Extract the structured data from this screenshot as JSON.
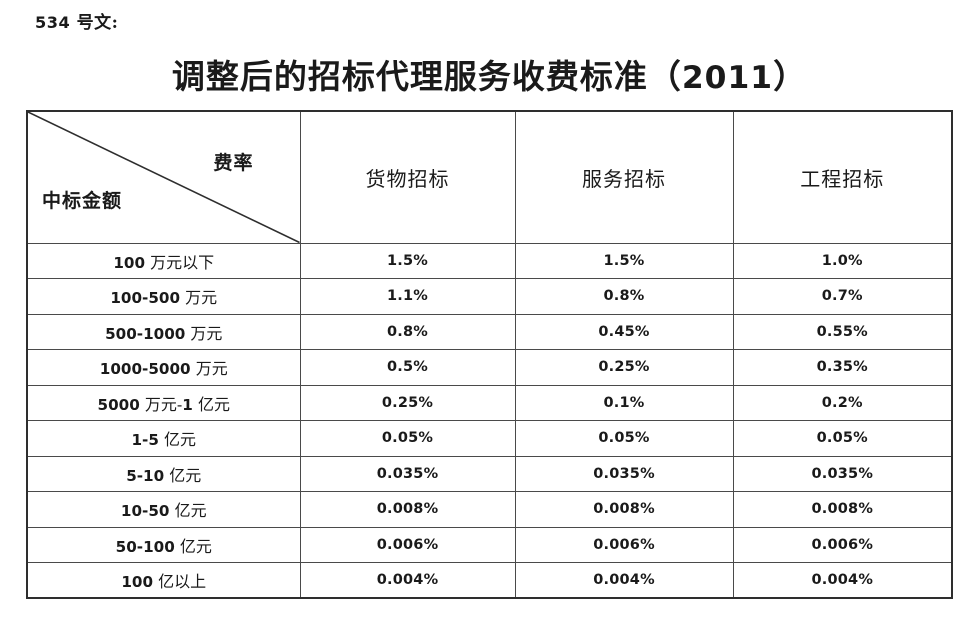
{
  "document": {
    "doc_number": "534 号文:",
    "title": "调整后的招标代理服务收费标准（2011）"
  },
  "table": {
    "corner": {
      "top_right_label": "费率",
      "bottom_left_label": "中标金额"
    },
    "column_headers": [
      "货物招标",
      "服务招标",
      "工程招标"
    ],
    "rows": [
      {
        "amount": "100 万元以下",
        "values": [
          "1.5%",
          "1.5%",
          "1.0%"
        ]
      },
      {
        "amount": "100-500 万元",
        "values": [
          "1.1%",
          "0.8%",
          "0.7%"
        ]
      },
      {
        "amount": "500-1000 万元",
        "values": [
          "0.8%",
          "0.45%",
          "0.55%"
        ]
      },
      {
        "amount": "1000-5000 万元",
        "values": [
          "0.5%",
          "0.25%",
          "0.35%"
        ]
      },
      {
        "amount": "5000 万元-1 亿元",
        "values": [
          "0.25%",
          "0.1%",
          "0.2%"
        ]
      },
      {
        "amount": "1-5 亿元",
        "values": [
          "0.05%",
          "0.05%",
          "0.05%"
        ]
      },
      {
        "amount": "5-10 亿元",
        "values": [
          "0.035%",
          "0.035%",
          "0.035%"
        ]
      },
      {
        "amount": "10-50 亿元",
        "values": [
          "0.008%",
          "0.008%",
          "0.008%"
        ]
      },
      {
        "amount": "50-100 亿元",
        "values": [
          "0.006%",
          "0.006%",
          "0.006%"
        ]
      },
      {
        "amount": "100 亿以上",
        "values": [
          "0.004%",
          "0.004%",
          "0.004%"
        ]
      }
    ]
  },
  "colors": {
    "text": "#1a1a1a",
    "border_inner": "#4a4a4a",
    "border_outer": "#2e2e2e",
    "background": "#ffffff"
  }
}
